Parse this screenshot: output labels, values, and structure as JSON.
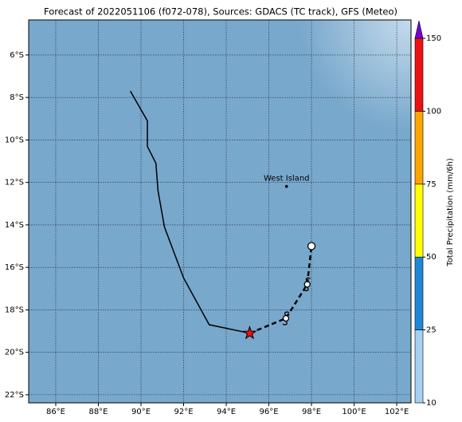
{
  "chart_data": {
    "type": "map",
    "title": "Forecast of 2022051106 (f072-078), Sources: GDACS (TC track), GFS (Meteo)",
    "xlim": [
      84.73,
      102.67
    ],
    "ylim": [
      -22.38,
      -4.35
    ],
    "xticks": [
      {
        "value": 86,
        "label": "86°E"
      },
      {
        "value": 88,
        "label": "88°E"
      },
      {
        "value": 90,
        "label": "90°E"
      },
      {
        "value": 92,
        "label": "92°E"
      },
      {
        "value": 94,
        "label": "94°E"
      },
      {
        "value": 96,
        "label": "96°E"
      },
      {
        "value": 98,
        "label": "98°E"
      },
      {
        "value": 100,
        "label": "100°E"
      },
      {
        "value": 102,
        "label": "102°E"
      }
    ],
    "yticks": [
      {
        "value": -6,
        "label": "6°S"
      },
      {
        "value": -8,
        "label": "8°S"
      },
      {
        "value": -10,
        "label": "10°S"
      },
      {
        "value": -12,
        "label": "12°S"
      },
      {
        "value": -14,
        "label": "14°S"
      },
      {
        "value": -16,
        "label": "16°S"
      },
      {
        "value": -18,
        "label": "18°S"
      },
      {
        "value": -20,
        "label": "20°S"
      },
      {
        "value": -22,
        "label": "22°S"
      }
    ],
    "grid": true,
    "track": {
      "lon": [
        89.5,
        90.3,
        90.3,
        90.7,
        90.8,
        91.1,
        92.0,
        93.2,
        95.1
      ],
      "lat": [
        -7.7,
        -9.1,
        -10.3,
        -11.1,
        -12.4,
        -14.1,
        -16.5,
        -18.7,
        -19.1
      ],
      "color": "#000000"
    },
    "forecast": {
      "lon": [
        95.1,
        96.8,
        97.8,
        98.0
      ],
      "lat": [
        -19.1,
        -18.4,
        -16.8,
        -15.0
      ],
      "color": "#000000"
    },
    "current_color": "#ee1111",
    "places": [
      {
        "name": "West Island",
        "lon": 96.83,
        "lat": -12.19
      }
    ],
    "colorbar": {
      "label": "Total Precipitation (mm/6h)",
      "bounds": [
        10,
        25,
        50,
        75,
        100,
        150
      ],
      "colors": [
        "#a6d0f0",
        "#1e88d8",
        "#ffff00",
        "#ffa500",
        "#ee1111"
      ],
      "extend_color": "#7b00d4"
    }
  }
}
